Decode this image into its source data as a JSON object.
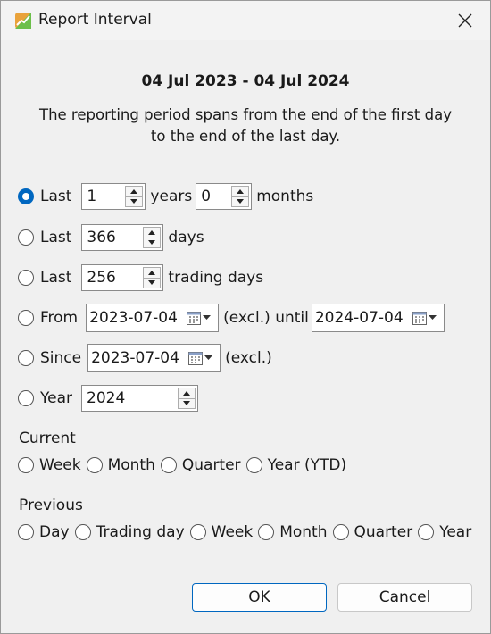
{
  "window": {
    "title": "Report Interval"
  },
  "header": {
    "date_range": "04 Jul 2023 - 04 Jul 2024",
    "description_line1": "The reporting period spans from the end of the first day",
    "description_line2": "to the end of the last day."
  },
  "options": {
    "last_years": {
      "prefix": "Last",
      "years_value": "1",
      "years_label": "years",
      "months_value": "0",
      "months_label": "months",
      "selected": true
    },
    "last_days": {
      "prefix": "Last",
      "value": "366",
      "label": "days"
    },
    "last_trading_days": {
      "prefix": "Last",
      "value": "256",
      "label": "trading days"
    },
    "from": {
      "prefix": "From",
      "start": "2023-07-04",
      "middle_label": "(excl.) until",
      "end": "2024-07-04"
    },
    "since": {
      "prefix": "Since",
      "date": "2023-07-04",
      "suffix": "(excl.)"
    },
    "year": {
      "prefix": "Year",
      "value": "2024"
    }
  },
  "current": {
    "label": "Current",
    "items": [
      "Week",
      "Month",
      "Quarter",
      "Year (YTD)"
    ]
  },
  "previous": {
    "label": "Previous",
    "items": [
      "Day",
      "Trading day",
      "Week",
      "Month",
      "Quarter",
      "Year"
    ]
  },
  "buttons": {
    "ok": "OK",
    "cancel": "Cancel"
  },
  "colors": {
    "accent": "#0067c0"
  }
}
